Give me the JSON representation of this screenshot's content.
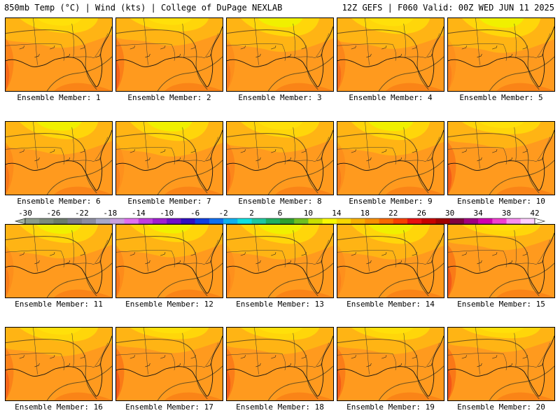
{
  "header": {
    "left": "850mb Temp (°C) | Wind (kts) | College of DuPage NEXLAB",
    "right": "12Z GEFS | F060 Valid: 00Z WED JUN 11 2025"
  },
  "colorbar": {
    "labels": [
      "-30",
      "-26",
      "-22",
      "-18",
      "-14",
      "-10",
      "-6",
      "-2",
      "2",
      "6",
      "10",
      "14",
      "18",
      "22",
      "26",
      "30",
      "34",
      "38",
      "42"
    ],
    "colors": [
      "#8c9c8c",
      "#7c8c7c",
      "#6c7c6c",
      "#7c7c8c",
      "#8c8ca0",
      "#a8a8c8",
      "#c8a0e0",
      "#e070f0",
      "#c040e0",
      "#a020d0",
      "#7010c8",
      "#3010c0",
      "#1040e0",
      "#1070f0",
      "#10b0f0",
      "#10e0e0",
      "#20c8a0",
      "#20b060",
      "#30a030",
      "#70c020",
      "#c8e000",
      "#f8f800",
      "#f8d800",
      "#f8b000",
      "#f89000",
      "#f86800",
      "#f84000",
      "#e81010",
      "#c80000",
      "#a00000",
      "#800040",
      "#a00080",
      "#d000b0",
      "#f040d0",
      "#f890f0",
      "#ffd0ff"
    ],
    "under_color": "#a0b0a0",
    "over_color": "#ffffff"
  },
  "members": [
    {
      "label": "Ensemble Member: 1",
      "yellow": 0.55
    },
    {
      "label": "Ensemble Member: 2",
      "yellow": 0.45
    },
    {
      "label": "Ensemble Member: 3",
      "yellow": 0.75
    },
    {
      "label": "Ensemble Member: 4",
      "yellow": 0.6
    },
    {
      "label": "Ensemble Member: 5",
      "yellow": 0.8
    },
    {
      "label": "Ensemble Member: 6",
      "yellow": 0.7
    },
    {
      "label": "Ensemble Member: 7",
      "yellow": 0.8
    },
    {
      "label": "Ensemble Member: 8",
      "yellow": 0.6
    },
    {
      "label": "Ensemble Member: 9",
      "yellow": 0.75
    },
    {
      "label": "Ensemble Member: 10",
      "yellow": 0.4
    },
    {
      "label": "Ensemble Member: 11",
      "yellow": 0.75
    },
    {
      "label": "Ensemble Member: 12",
      "yellow": 0.7
    },
    {
      "label": "Ensemble Member: 13",
      "yellow": 0.8
    },
    {
      "label": "Ensemble Member: 14",
      "yellow": 0.8
    },
    {
      "label": "Ensemble Member: 15",
      "yellow": 0.35
    },
    {
      "label": "Ensemble Member: 16",
      "yellow": 0.5
    },
    {
      "label": "Ensemble Member: 17",
      "yellow": 0.35
    },
    {
      "label": "Ensemble Member: 18",
      "yellow": 0.4
    },
    {
      "label": "Ensemble Member: 19",
      "yellow": 0.4
    },
    {
      "label": "Ensemble Member: 20",
      "yellow": 0.3
    }
  ]
}
